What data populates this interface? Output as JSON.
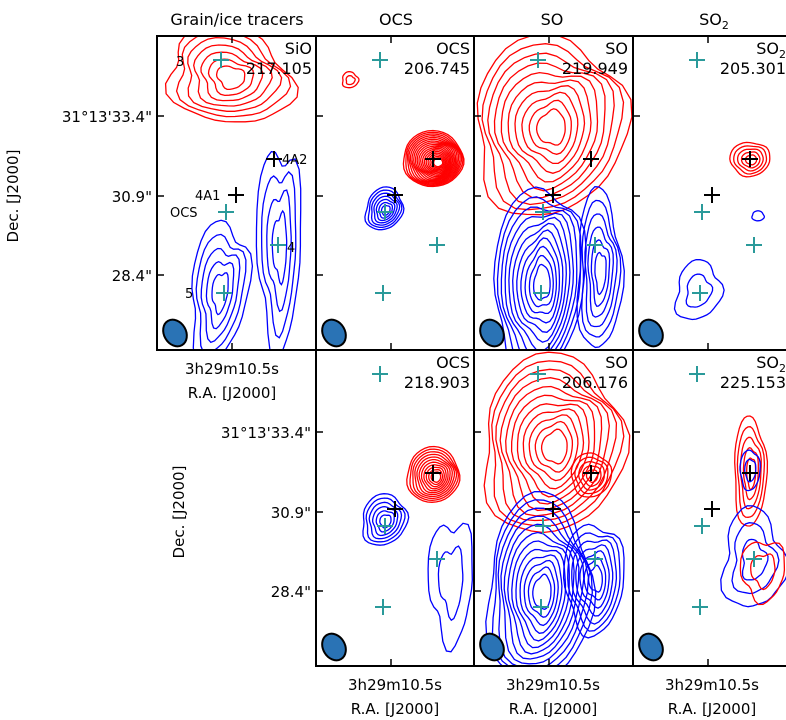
{
  "chart_data": {
    "type": "contour",
    "colors": {
      "red_contours": "#ff0000",
      "blue_contours": "#0000ff",
      "source_marker_cyan": "#2a9a9a",
      "source_marker_black": "#000000",
      "beam": "#2a73b5"
    },
    "column_titles": [
      "Grain/ice tracers",
      "OCS",
      "SO",
      "SO2"
    ],
    "y_tick_labels": [
      "31°13'33.4\"",
      "30.9\"",
      "28.4\""
    ],
    "x_tick_label": "3h29m10.5s",
    "x_axis_label": "R.A. [J2000]",
    "y_axis_label": "Dec. [J2000]",
    "source_labels": [
      "3",
      "4A2",
      "4A1",
      "OCS",
      "4",
      "5"
    ],
    "panels": [
      {
        "id": "r1c1",
        "molecule": "SiO",
        "frequency": "217.105"
      },
      {
        "id": "r1c2",
        "molecule": "OCS",
        "frequency": "206.745"
      },
      {
        "id": "r1c3",
        "molecule": "SO",
        "frequency": "219.949"
      },
      {
        "id": "r1c4",
        "molecule": "SO2",
        "frequency": "205.301"
      },
      {
        "id": "r2c2",
        "molecule": "OCS",
        "frequency": "218.903"
      },
      {
        "id": "r2c3",
        "molecule": "SO",
        "frequency": "206.176"
      },
      {
        "id": "r2c4",
        "molecule": "SO2",
        "frequency": "225.153"
      }
    ]
  }
}
